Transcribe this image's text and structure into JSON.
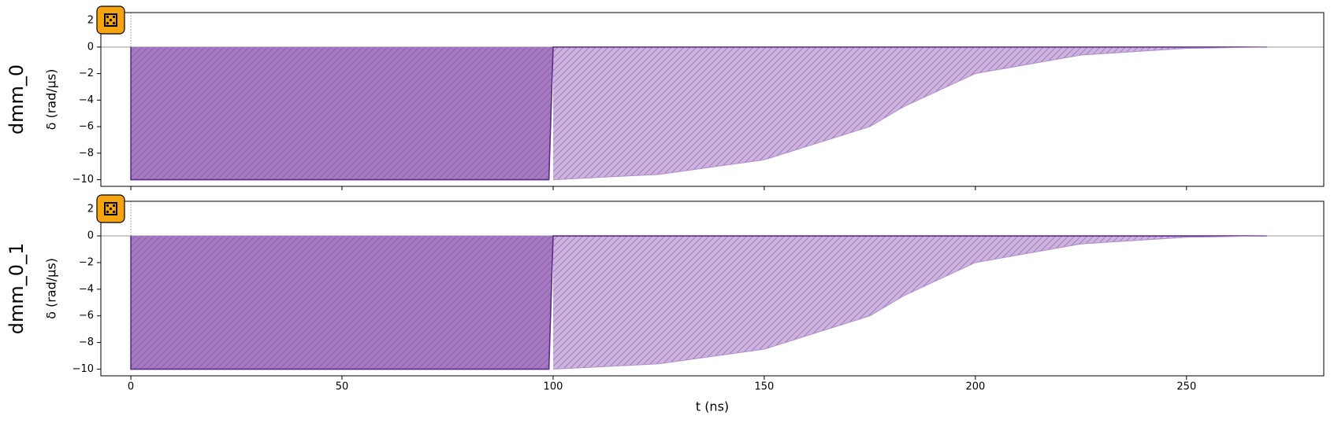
{
  "chart_data": [
    {
      "type": "line",
      "channel_label": "dmm_0",
      "ylabel": "δ (rad/µs)",
      "xlim": [
        -7.1,
        282.5
      ],
      "xticks": [
        0,
        50,
        100,
        150,
        200,
        250
      ],
      "show_xticklabels": false,
      "ylim": [
        -10.5,
        2.6
      ],
      "yticks": [
        {
          "value": -10,
          "label": "−10"
        },
        {
          "value": -8,
          "label": "−8"
        },
        {
          "value": -6,
          "label": "−6"
        },
        {
          "value": -4,
          "label": "−4"
        },
        {
          "value": -2,
          "label": "−2"
        },
        0,
        2
      ],
      "series": [
        {
          "color": "#5b2a8e",
          "fill": "#a57ac0",
          "x": [
            0,
            0,
            99,
            100,
            269
          ],
          "values": [
            0,
            -10,
            -10,
            0,
            0
          ]
        },
        {
          "color": "#b08fcb",
          "fill": "#cdb3dd",
          "x": [
            100,
            125,
            150,
            175,
            183,
            200,
            225,
            250,
            269
          ],
          "values": [
            -10,
            -9.6,
            -8.5,
            -6,
            -4.5,
            -2,
            -0.6,
            -0.1,
            0
          ]
        }
      ]
    },
    {
      "type": "line",
      "channel_label": "dmm_0_1",
      "ylabel": "δ (rad/µs)",
      "xlabel": "t (ns)",
      "xlim": [
        -7.1,
        282.5
      ],
      "xticks": [
        0,
        50,
        100,
        150,
        200,
        250
      ],
      "show_xticklabels": true,
      "ylim": [
        -10.5,
        2.6
      ],
      "yticks": [
        {
          "value": -10,
          "label": "−10"
        },
        {
          "value": -8,
          "label": "−8"
        },
        {
          "value": -6,
          "label": "−6"
        },
        {
          "value": -4,
          "label": "−4"
        },
        {
          "value": -2,
          "label": "−2"
        },
        0,
        2
      ],
      "series": [
        {
          "color": "#5b2a8e",
          "fill": "#a57ac0",
          "x": [
            0,
            0,
            99,
            100,
            269
          ],
          "values": [
            0,
            -10,
            -10,
            0,
            0
          ]
        },
        {
          "color": "#b08fcb",
          "fill": "#cdb3dd",
          "x": [
            100,
            125,
            150,
            175,
            183,
            200,
            225,
            250,
            269
          ],
          "values": [
            -10,
            -9.6,
            -8.5,
            -6,
            -4.5,
            -2,
            -0.6,
            -0.1,
            0
          ]
        }
      ]
    }
  ]
}
